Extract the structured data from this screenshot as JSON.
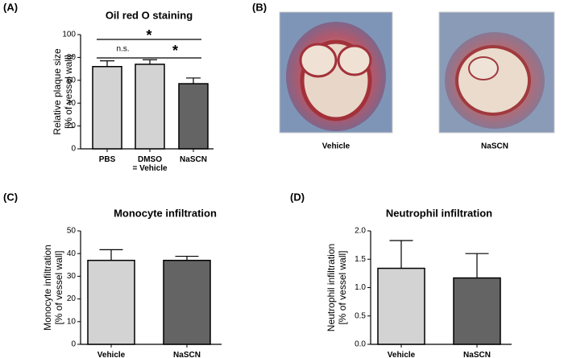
{
  "panel_labels": [
    "(A)",
    "(B)",
    "(C)",
    "(D)"
  ],
  "images": {
    "labels": [
      "Vehicle",
      "NaSCN"
    ]
  },
  "chart_data": [
    {
      "type": "bar",
      "title": "Oil red O staining",
      "ylabel": [
        "Relative plaque size",
        "[% of vessel wall]"
      ],
      "categories": [
        "PBS",
        "DMSO\n= Vehicle",
        "NaSCN"
      ],
      "values": [
        72,
        74,
        57
      ],
      "errors": [
        5,
        4,
        5
      ],
      "colors": [
        "#d3d3d3",
        "#d3d3d3",
        "#646464"
      ],
      "ylim": [
        0,
        100
      ],
      "yticks": [
        0,
        20,
        40,
        60,
        80,
        100
      ],
      "annotations": [
        "n.s.",
        "*",
        "*"
      ]
    },
    {
      "type": "bar",
      "title": "Monocyte infiltration",
      "ylabel": [
        "Monocyte infiltration",
        "[% of vessel wall]"
      ],
      "categories": [
        "Vehicle",
        "NaSCN"
      ],
      "values": [
        37,
        37
      ],
      "errors": [
        4.7,
        1.8
      ],
      "colors": [
        "#d3d3d3",
        "#646464"
      ],
      "ylim": [
        0,
        50
      ],
      "yticks": [
        0,
        10,
        20,
        30,
        40,
        50
      ]
    },
    {
      "type": "bar",
      "title": "Neutrophil infiltration",
      "ylabel": [
        "Neutrophil infiltration",
        "[% of vessel wall]"
      ],
      "categories": [
        "Vehicle",
        "NaSCN"
      ],
      "values": [
        1.34,
        1.17
      ],
      "errors": [
        0.49,
        0.43
      ],
      "colors": [
        "#d3d3d3",
        "#646464"
      ],
      "ylim": [
        0,
        2
      ],
      "yticks": [
        {
          "value": 0,
          "label": "0.0"
        },
        0.5,
        {
          "value": 1,
          "label": "1.0"
        },
        1.5,
        {
          "value": 2,
          "label": "2.0"
        }
      ]
    }
  ]
}
